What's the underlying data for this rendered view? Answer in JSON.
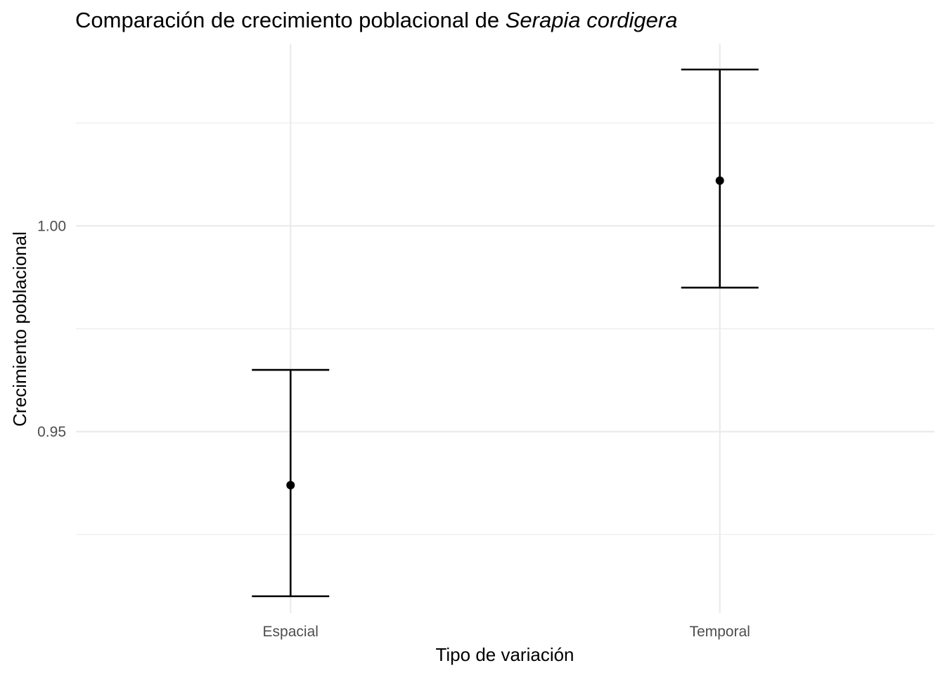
{
  "chart_data": {
    "type": "errorbar",
    "title_parts": [
      "Comparación de crecimiento poblacional de ",
      "Serapia cordigera"
    ],
    "xlabel": "Tipo de variación",
    "ylabel": "Crecimiento poblacional",
    "categories": [
      "Espacial",
      "Temporal"
    ],
    "points": [
      {
        "category": "Espacial",
        "mean": 0.937,
        "lower": 0.91,
        "upper": 0.965
      },
      {
        "category": "Temporal",
        "mean": 1.011,
        "lower": 0.985,
        "upper": 1.038
      }
    ],
    "ylim": [
      0.9059,
      1.0443
    ],
    "yticks": [
      0.95,
      1.0
    ],
    "ytick_labels": [
      "0.95",
      "1.00"
    ],
    "yminor": [
      0.925,
      0.975,
      1.025
    ],
    "grid": true,
    "legend": "none"
  },
  "colors": {
    "mark": "#000000",
    "grid": "#ebebeb",
    "tick_text": "#4d4d4d"
  }
}
